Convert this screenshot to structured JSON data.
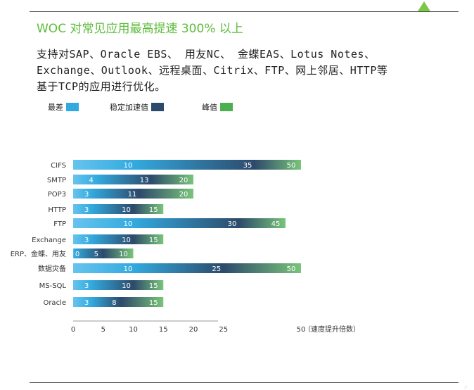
{
  "title": "WOC 对常见应用最高提速 300% 以上",
  "paragraph": {
    "line1": "支持对SAP、Oracle EBS、 用友NC、 金蝶EAS、Lotus Notes、",
    "line2": "Exchange、Outlook、远程桌面、Citrix、FTP、网上邻居、HTTP等",
    "line3": "基于TCP的应用进行优化。"
  },
  "colors": {
    "title": "#5dbb3b",
    "worst": "#33aadf",
    "stable": "#2d4a6b",
    "peak": "#4caf50",
    "accent": "#7ac943"
  },
  "chart_data": {
    "type": "bar",
    "orientation": "horizontal",
    "categories": [
      "CIFS",
      "SMTP",
      "POP3",
      "HTTP",
      "FTP",
      "Exchange",
      "ERP、金蝶、用友",
      "数据灾备",
      "MS-SQL",
      "Oracle"
    ],
    "series": [
      {
        "name": "最差",
        "values": [
          10,
          4,
          3,
          3,
          10,
          3,
          0,
          10,
          3,
          3
        ]
      },
      {
        "name": "稳定加速值",
        "values": [
          35,
          13,
          11,
          10,
          30,
          10,
          5,
          25,
          10,
          8
        ]
      },
      {
        "name": "峰值",
        "values": [
          50,
          20,
          20,
          15,
          45,
          15,
          10,
          50,
          15,
          15
        ]
      }
    ],
    "x_ticks": [
      "0",
      "5",
      "10",
      "15",
      "20",
      "25",
      "50"
    ],
    "xlabel": "（速度提升倍数）",
    "legend_position": "top-left"
  }
}
